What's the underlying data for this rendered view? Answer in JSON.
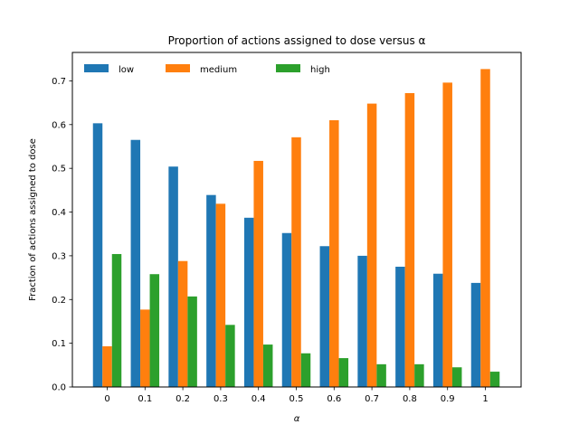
{
  "chart_data": {
    "type": "bar",
    "title": "Proportion of actions assigned to dose versus α",
    "xlabel": "α",
    "ylabel": "Fraction of actions assigned to dose",
    "categories": [
      "0",
      "0.1",
      "0.2",
      "0.3",
      "0.4",
      "0.5",
      "0.6",
      "0.7",
      "0.8",
      "0.9",
      "1"
    ],
    "ylim": [
      0,
      0.765
    ],
    "yticks": [
      "0.0",
      "0.1",
      "0.2",
      "0.3",
      "0.4",
      "0.5",
      "0.6",
      "0.7"
    ],
    "grid": false,
    "legend_position": "top-left",
    "series": [
      {
        "name": "low",
        "color": "#1f77b4",
        "values": [
          0.603,
          0.565,
          0.504,
          0.439,
          0.387,
          0.352,
          0.322,
          0.3,
          0.275,
          0.259,
          0.238
        ]
      },
      {
        "name": "medium",
        "color": "#ff7f0e",
        "values": [
          0.093,
          0.177,
          0.288,
          0.419,
          0.517,
          0.571,
          0.61,
          0.648,
          0.672,
          0.696,
          0.727
        ]
      },
      {
        "name": "high",
        "color": "#2ca02c",
        "values": [
          0.304,
          0.258,
          0.207,
          0.142,
          0.097,
          0.077,
          0.066,
          0.052,
          0.052,
          0.045,
          0.035
        ]
      }
    ]
  }
}
